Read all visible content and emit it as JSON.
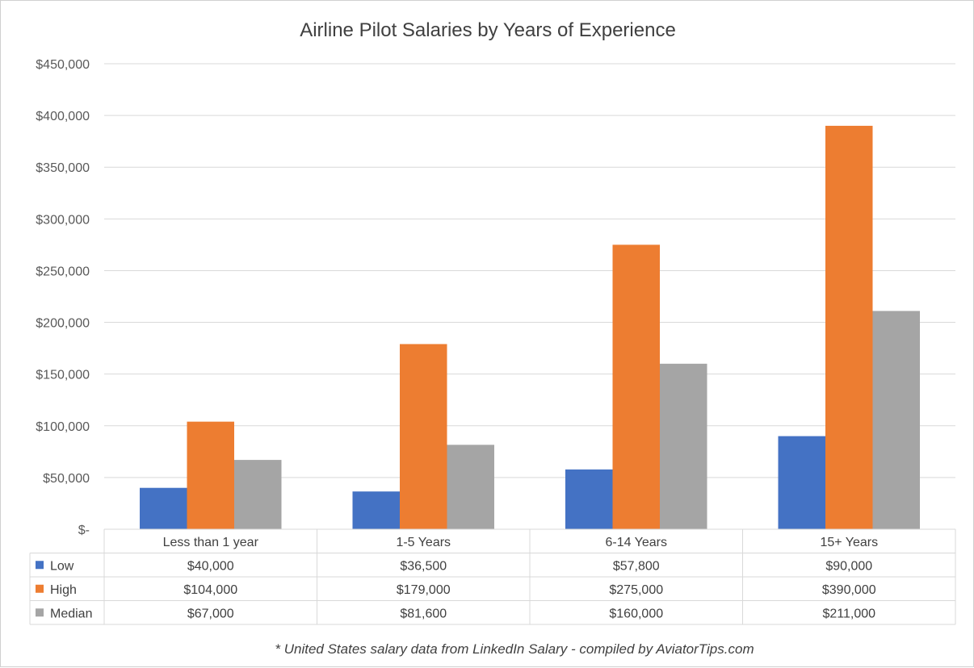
{
  "chart_data": {
    "type": "bar",
    "title": "Airline Pilot Salaries by Years of Experience",
    "categories": [
      "Less than 1 year",
      "1-5 Years",
      "6-14 Years",
      "15+ Years"
    ],
    "series": [
      {
        "name": "Low",
        "color": "#4472c4",
        "values": [
          40000,
          36500,
          57800,
          90000
        ],
        "labels": [
          "$40,000",
          "$36,500",
          "$57,800",
          "$90,000"
        ]
      },
      {
        "name": "High",
        "color": "#ed7d31",
        "values": [
          104000,
          179000,
          275000,
          390000
        ],
        "labels": [
          "$104,000",
          "$179,000",
          "$275,000",
          "$390,000"
        ]
      },
      {
        "name": "Median",
        "color": "#a5a5a5",
        "values": [
          67000,
          81600,
          160000,
          211000
        ],
        "labels": [
          "$67,000",
          "$81,600",
          "$160,000",
          "$211,000"
        ]
      }
    ],
    "ylim": [
      0,
      450000
    ],
    "ytick_values": [
      0,
      50000,
      100000,
      150000,
      200000,
      250000,
      300000,
      350000,
      400000,
      450000
    ],
    "ytick_labels": [
      "$-",
      "$50,000",
      "$100,000",
      "$150,000",
      "$200,000",
      "$250,000",
      "$300,000",
      "$350,000",
      "$400,000",
      "$450,000"
    ],
    "grid": true,
    "legend": "data-table",
    "footnote": "* United States salary data from LinkedIn Salary - compiled by AviatorTips.com"
  }
}
